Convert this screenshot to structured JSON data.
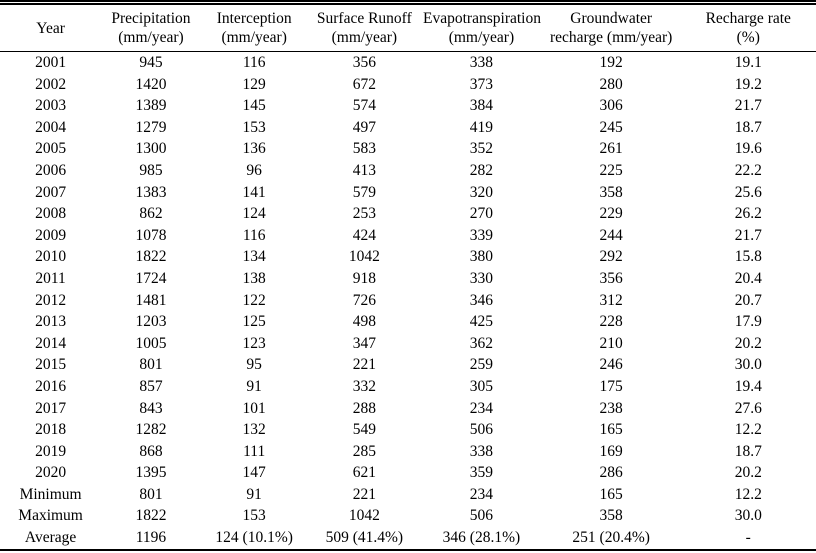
{
  "colors": {
    "background": "#ffffff",
    "text": "#000000",
    "rule": "#000000"
  },
  "table": {
    "columns": [
      {
        "label": "Year",
        "sub": ""
      },
      {
        "label": "Precipitation",
        "sub": "(mm/year)"
      },
      {
        "label": "Interception",
        "sub": "(mm/year)"
      },
      {
        "label": "Surface Runoff",
        "sub": "(mm/year)"
      },
      {
        "label": "Evapotranspiration",
        "sub": "(mm/year)"
      },
      {
        "label": "Groundwater",
        "sub": "recharge (mm/year)"
      },
      {
        "label": "Recharge rate",
        "sub": "(%)"
      }
    ],
    "rows": [
      [
        "2001",
        "945",
        "116",
        "356",
        "338",
        "192",
        "19.1"
      ],
      [
        "2002",
        "1420",
        "129",
        "672",
        "373",
        "280",
        "19.2"
      ],
      [
        "2003",
        "1389",
        "145",
        "574",
        "384",
        "306",
        "21.7"
      ],
      [
        "2004",
        "1279",
        "153",
        "497",
        "419",
        "245",
        "18.7"
      ],
      [
        "2005",
        "1300",
        "136",
        "583",
        "352",
        "261",
        "19.6"
      ],
      [
        "2006",
        "985",
        "96",
        "413",
        "282",
        "225",
        "22.2"
      ],
      [
        "2007",
        "1383",
        "141",
        "579",
        "320",
        "358",
        "25.6"
      ],
      [
        "2008",
        "862",
        "124",
        "253",
        "270",
        "229",
        "26.2"
      ],
      [
        "2009",
        "1078",
        "116",
        "424",
        "339",
        "244",
        "21.7"
      ],
      [
        "2010",
        "1822",
        "134",
        "1042",
        "380",
        "292",
        "15.8"
      ],
      [
        "2011",
        "1724",
        "138",
        "918",
        "330",
        "356",
        "20.4"
      ],
      [
        "2012",
        "1481",
        "122",
        "726",
        "346",
        "312",
        "20.7"
      ],
      [
        "2013",
        "1203",
        "125",
        "498",
        "425",
        "228",
        "17.9"
      ],
      [
        "2014",
        "1005",
        "123",
        "347",
        "362",
        "210",
        "20.2"
      ],
      [
        "2015",
        "801",
        "95",
        "221",
        "259",
        "246",
        "30.0"
      ],
      [
        "2016",
        "857",
        "91",
        "332",
        "305",
        "175",
        "19.4"
      ],
      [
        "2017",
        "843",
        "101",
        "288",
        "234",
        "238",
        "27.6"
      ],
      [
        "2018",
        "1282",
        "132",
        "549",
        "506",
        "165",
        "12.2"
      ],
      [
        "2019",
        "868",
        "111",
        "285",
        "338",
        "169",
        "18.7"
      ],
      [
        "2020",
        "1395",
        "147",
        "621",
        "359",
        "286",
        "20.2"
      ],
      [
        "Minimum",
        "801",
        "91",
        "221",
        "234",
        "165",
        "12.2"
      ],
      [
        "Maximum",
        "1822",
        "153",
        "1042",
        "506",
        "358",
        "30.0"
      ],
      [
        "Average",
        "1196",
        "124 (10.1%)",
        "509 (41.4%)",
        "346 (28.1%)",
        "251 (20.4%)",
        "-"
      ]
    ]
  }
}
